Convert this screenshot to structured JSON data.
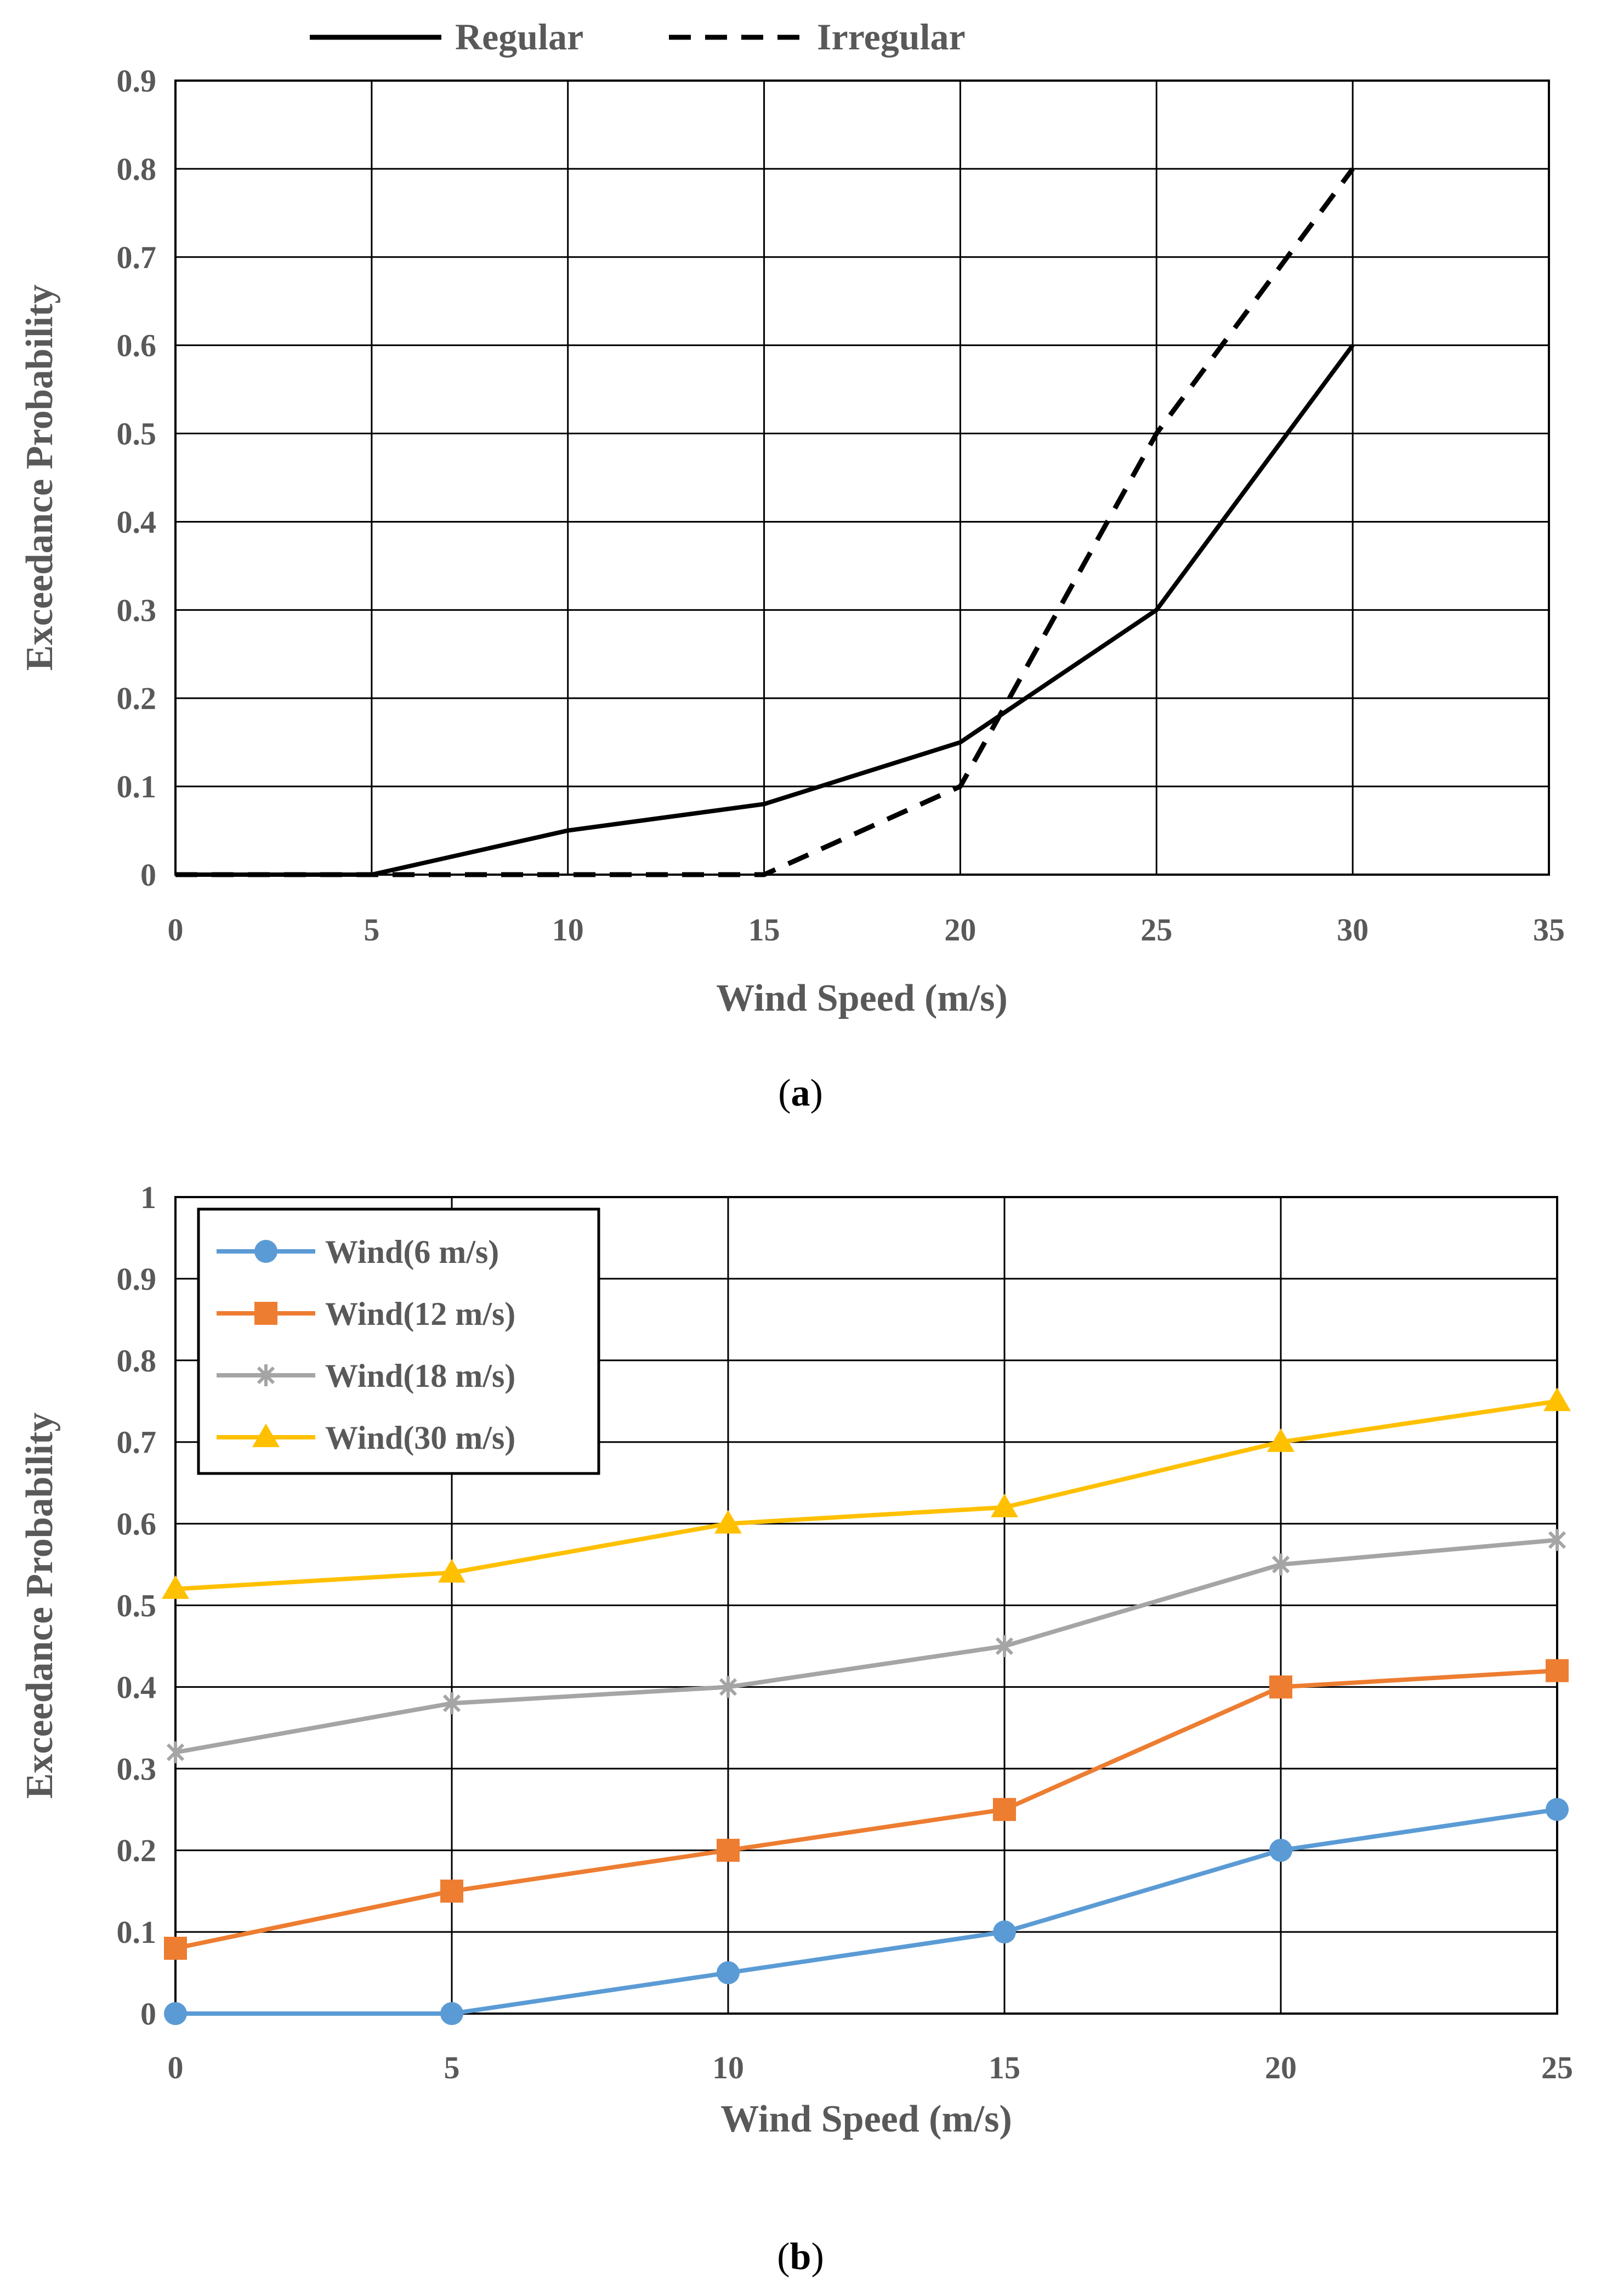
{
  "chart_data": [
    {
      "type": "line",
      "panel": "a",
      "caption_open": "(",
      "caption_letter": "a",
      "caption_close": ")",
      "xlabel": "Wind Speed (m/s)",
      "ylabel": "Exceedance Probability",
      "xlim": [
        0,
        35
      ],
      "ylim": [
        0,
        0.9
      ],
      "x_ticks": [
        "0",
        "5",
        "10",
        "15",
        "20",
        "25",
        "30",
        "35"
      ],
      "y_ticks": [
        "0",
        "0.1",
        "0.2",
        "0.3",
        "0.4",
        "0.5",
        "0.6",
        "0.7",
        "0.8",
        "0.9"
      ],
      "grid": true,
      "legend_position": "top",
      "series": [
        {
          "name": "Regular",
          "style": "solid",
          "color": "#000000",
          "x": [
            0,
            5,
            10,
            15,
            20,
            25,
            30
          ],
          "y": [
            0,
            0,
            0.05,
            0.08,
            0.15,
            0.3,
            0.6
          ]
        },
        {
          "name": "Irregular",
          "style": "dashed",
          "color": "#000000",
          "x": [
            0,
            5,
            10,
            15,
            20,
            25,
            30
          ],
          "y": [
            0,
            0,
            0,
            0,
            0.1,
            0.5,
            0.8
          ]
        }
      ]
    },
    {
      "type": "line",
      "panel": "b",
      "caption_open": "(",
      "caption_letter": "b",
      "caption_close": ")",
      "xlabel": "Wind Speed (m/s)",
      "ylabel": "Exceedance Probability",
      "xlim": [
        0,
        25
      ],
      "ylim": [
        0,
        1
      ],
      "x_ticks": [
        "0",
        "5",
        "10",
        "15",
        "20",
        "25"
      ],
      "y_ticks": [
        "0",
        "0.1",
        "0.2",
        "0.3",
        "0.4",
        "0.5",
        "0.6",
        "0.7",
        "0.8",
        "0.9",
        "1"
      ],
      "grid": true,
      "legend_position": "top-left",
      "series": [
        {
          "name": "Wind(6 m/s)",
          "marker": "circle",
          "color": "#5B9BD5",
          "x": [
            0,
            5,
            10,
            15,
            20,
            25
          ],
          "y": [
            0,
            0,
            0.05,
            0.1,
            0.2,
            0.25
          ]
        },
        {
          "name": "Wind(12 m/s)",
          "marker": "square",
          "color": "#ED7D31",
          "x": [
            0,
            5,
            10,
            15,
            20,
            25
          ],
          "y": [
            0.08,
            0.15,
            0.2,
            0.25,
            0.4,
            0.42
          ]
        },
        {
          "name": "Wind(18 m/s)",
          "marker": "star",
          "color": "#A5A5A5",
          "x": [
            0,
            5,
            10,
            15,
            20,
            25
          ],
          "y": [
            0.32,
            0.38,
            0.4,
            0.45,
            0.55,
            0.58
          ]
        },
        {
          "name": "Wind(30 m/s)",
          "marker": "triangle",
          "color": "#FFC000",
          "x": [
            0,
            5,
            10,
            15,
            20,
            25
          ],
          "y": [
            0.52,
            0.54,
            0.6,
            0.62,
            0.7,
            0.75
          ]
        }
      ]
    }
  ]
}
